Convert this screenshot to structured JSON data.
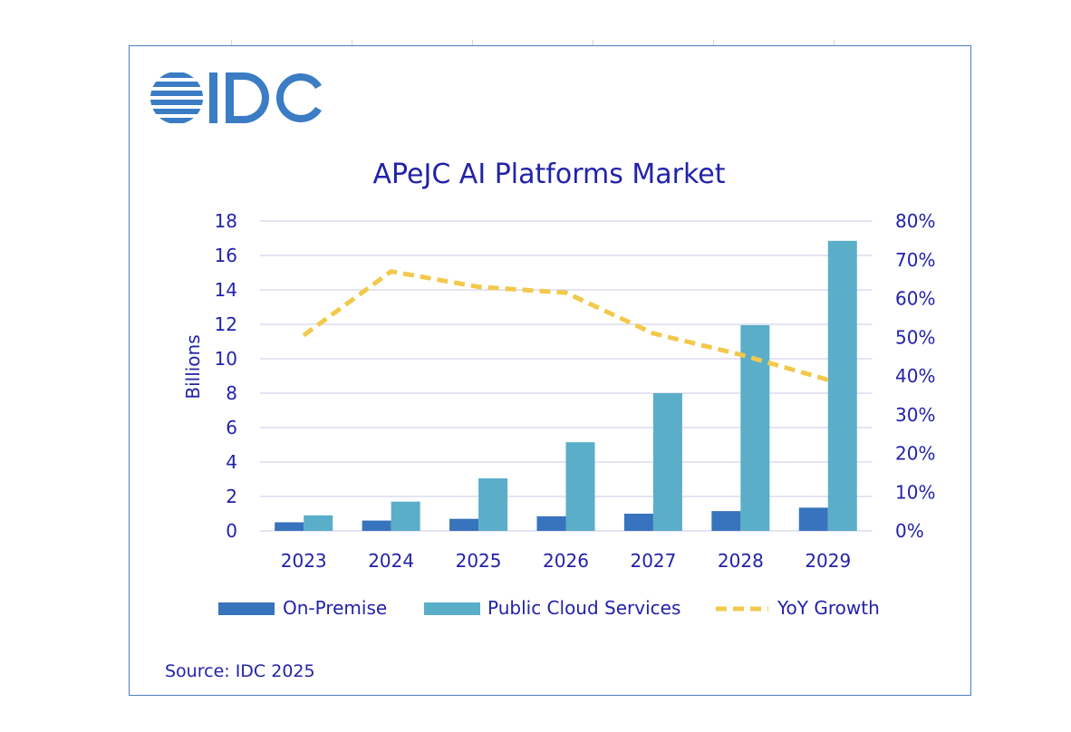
{
  "logo": {
    "text": "IDC",
    "color": "#3b7cc4"
  },
  "source": "Source: IDC 2025",
  "colors": {
    "on_premise": "#3873bd",
    "public_cloud": "#5aaec8",
    "yoy": "#f2c94c",
    "text": "#2222aa",
    "grid": "#c8c8e8"
  },
  "chart_data": {
    "type": "bar",
    "title": "APeJC AI Platforms Market",
    "ylabel": "Billions",
    "xlabel": "",
    "categories": [
      "2023",
      "2024",
      "2025",
      "2026",
      "2027",
      "2028",
      "2029"
    ],
    "ylim": [
      0,
      18
    ],
    "y_ticks": [
      "0",
      "2",
      "4",
      "6",
      "8",
      "10",
      "12",
      "14",
      "16",
      "18"
    ],
    "y2lim": [
      0,
      80
    ],
    "y2_ticks": [
      "0%",
      "10%",
      "20%",
      "30%",
      "40%",
      "50%",
      "60%",
      "70%",
      "80%"
    ],
    "series": [
      {
        "name": "On-Premise",
        "type": "bar",
        "axis": "left",
        "values": [
          0.5,
          0.6,
          0.7,
          0.85,
          1.0,
          1.15,
          1.35
        ]
      },
      {
        "name": "Public Cloud Services",
        "type": "bar",
        "axis": "left",
        "values": [
          0.9,
          1.7,
          3.05,
          5.15,
          8.0,
          11.95,
          16.85
        ]
      },
      {
        "name": "YoY Growth",
        "type": "line",
        "style": "dashed",
        "axis": "right",
        "values": [
          50.5,
          67,
          63,
          61.5,
          51,
          45.5,
          39
        ]
      }
    ],
    "grid": true,
    "legend": "bottom"
  }
}
